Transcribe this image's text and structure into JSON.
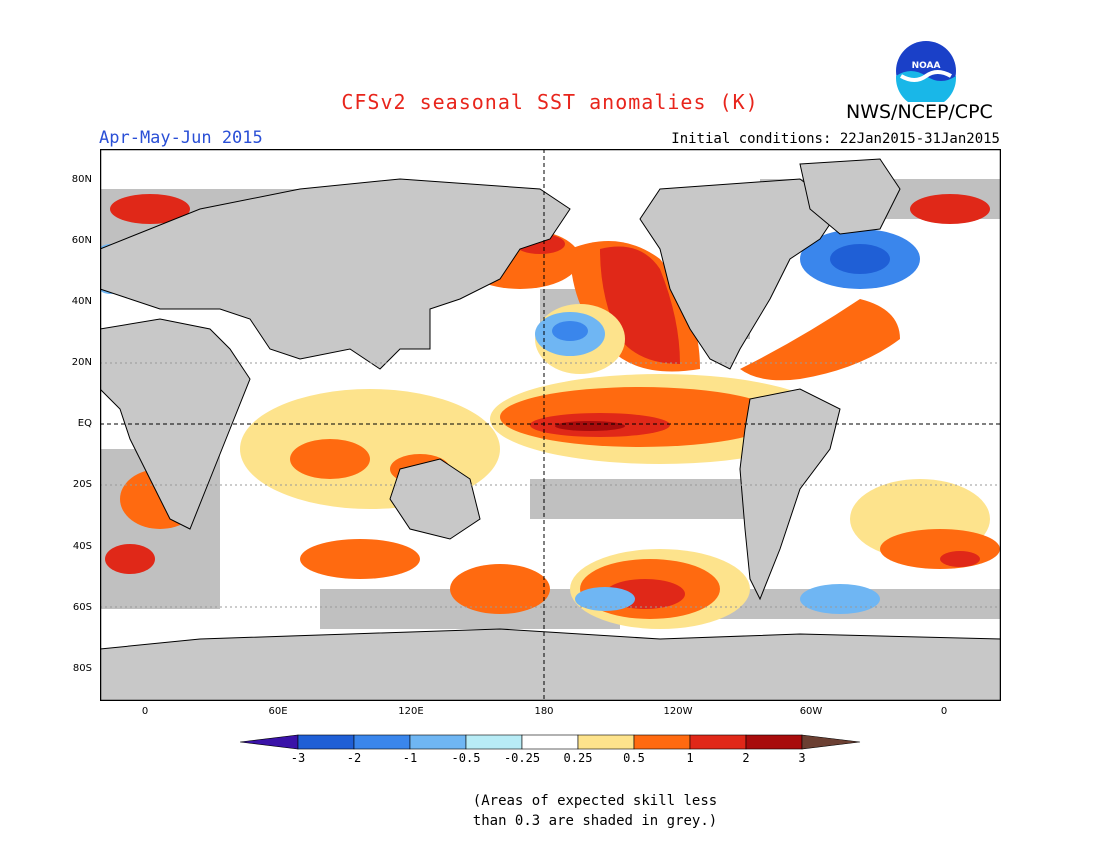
{
  "title": "CFSv2 seasonal SST anomalies (K)",
  "period": "Apr-May-Jun 2015",
  "initial_conditions": "Initial conditions: 22Jan2015-31Jan2015",
  "agency": "NWS/NCEP/CPC",
  "logo_text": "NOAA",
  "lat_labels": [
    "80N",
    "60N",
    "40N",
    "20N",
    "EQ",
    "20S",
    "40S",
    "60S",
    "80S"
  ],
  "lon_labels": [
    "0",
    "60E",
    "120E",
    "180",
    "120W",
    "60W",
    "0"
  ],
  "colorbar": {
    "labels": [
      "-3",
      "-2",
      "-1",
      "-0.5",
      "-0.25",
      "0.25",
      "0.5",
      "1",
      "2",
      "3"
    ],
    "colors": [
      "#3a12a8",
      "#1f5fd6",
      "#3a86ec",
      "#6fb6f3",
      "#b8ecf6",
      "#ffffff",
      "#fde38c",
      "#ff6a10",
      "#e02818",
      "#a80c0c",
      "#6b3f32"
    ]
  },
  "note": [
    "(Areas of expected skill less",
    "than 0.3 are shaded in grey.)"
  ],
  "colors": {
    "land": "#c8c8c8",
    "low_skill": "#c0c0c0",
    "title": "#e8251c",
    "period": "#2a4fd6"
  }
}
